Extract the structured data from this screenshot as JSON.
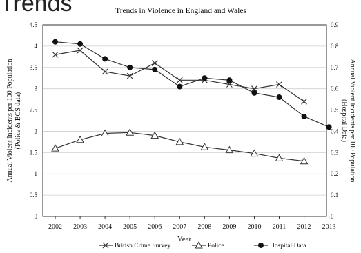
{
  "slide": {
    "title_fragment": "Trends"
  },
  "chart_data": {
    "type": "line",
    "title": "Trends in Violence in England and Wales",
    "xlabel": "Year",
    "ylabel_left": [
      "Annual Violent Incidents per 100 Population",
      "(Police & BCS data)"
    ],
    "ylabel_right": [
      "Annual Violent Incidents per 100 Population",
      "(Hospital Data)"
    ],
    "categories": [
      "2002",
      "2003",
      "2004",
      "2005",
      "2006",
      "2007",
      "2008",
      "2009",
      "2010",
      "2011",
      "2012",
      "2013"
    ],
    "ylim_left": [
      0,
      4.5
    ],
    "ylim_right": [
      0,
      0.9
    ],
    "left_ticks": [
      "0",
      "0.5",
      "1",
      "1.5",
      "2",
      "2.5",
      "3",
      "3.5",
      "4",
      "4.5"
    ],
    "right_ticks": [
      "0",
      "0.1",
      "0.2",
      "0.3",
      "0.4",
      "0.5",
      "0.6",
      "0.7",
      "0.8",
      "0.9"
    ],
    "grid": true,
    "legend_position": "bottom",
    "series": [
      {
        "name": "British Crime Survey",
        "axis": "left",
        "marker": "x",
        "values": [
          3.8,
          3.9,
          3.4,
          3.3,
          3.6,
          3.2,
          3.2,
          3.1,
          3.0,
          3.1,
          2.7,
          null
        ]
      },
      {
        "name": "Police",
        "axis": "left",
        "marker": "triangle",
        "values": [
          1.6,
          1.8,
          1.95,
          1.97,
          1.9,
          1.75,
          1.63,
          1.56,
          1.48,
          1.37,
          1.3,
          null
        ]
      },
      {
        "name": "Hospital Data",
        "axis": "right",
        "marker": "circle",
        "values": [
          0.82,
          0.81,
          0.74,
          0.7,
          0.69,
          0.61,
          0.65,
          0.64,
          0.58,
          0.56,
          0.47,
          0.42
        ]
      }
    ]
  }
}
